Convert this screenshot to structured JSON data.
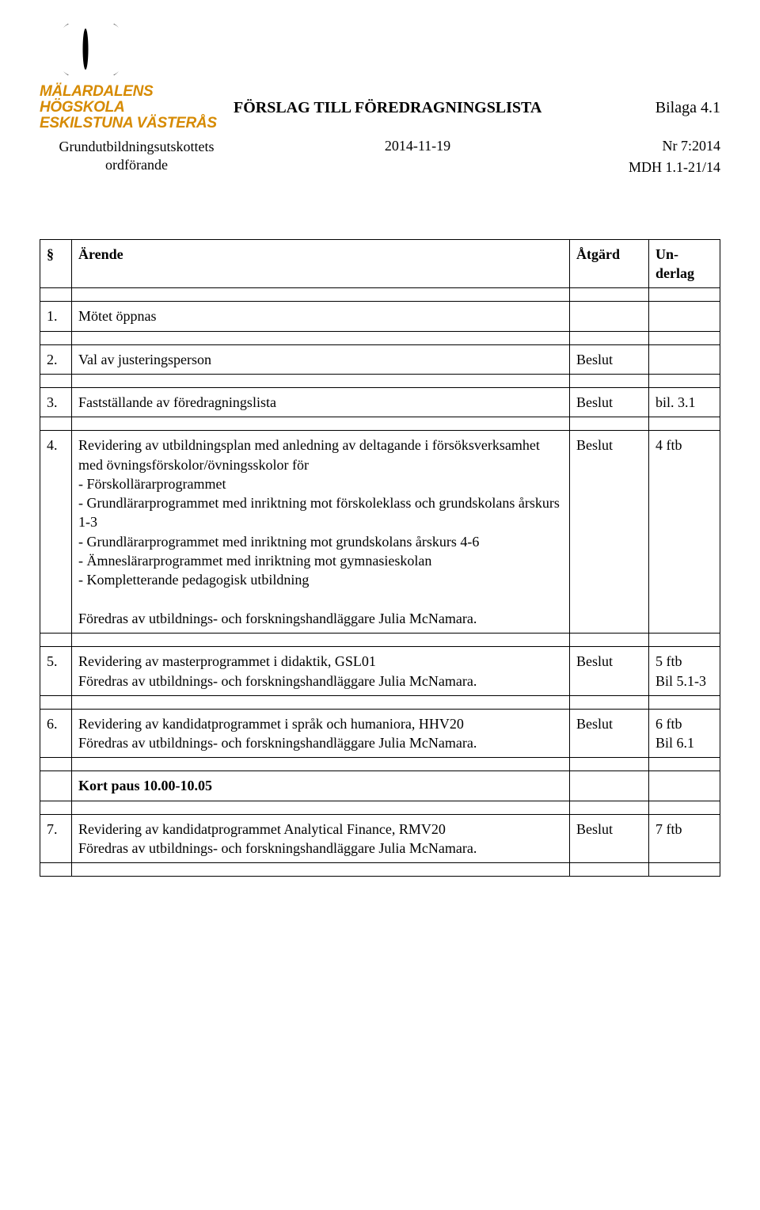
{
  "logo": {
    "line1_text": "MÄLARDALENS HÖGSKOLA",
    "line2_text": "ESKILSTUNA VÄSTERÅS",
    "text_color": "#d68a00",
    "symbol_color": "#000000"
  },
  "header": {
    "title": "FÖRSLAG TILL FÖREDRAGNINGSLISTA",
    "bilaga": "Bilaga 4.1",
    "subleft_line1": "Grundutbildningsutskottets",
    "subleft_line2": "ordförande",
    "date": "2014-11-19",
    "nr": "Nr 7:2014",
    "ref": "MDH 1.1-21/14"
  },
  "table": {
    "headers": {
      "num": "§",
      "arende": "Ärende",
      "atgard": "Åtgärd",
      "underlag": "Un-\nderlag"
    },
    "rows": [
      {
        "num": "1.",
        "desc": "Mötet öppnas",
        "action": "",
        "attach": ""
      },
      {
        "num": "2.",
        "desc": "Val av justeringsperson",
        "action": "Beslut",
        "attach": ""
      },
      {
        "num": "3.",
        "desc": "Fastställande av föredragningslista",
        "action": "Beslut",
        "attach": "bil. 3.1"
      },
      {
        "num": "4.",
        "desc": "Revidering av utbildningsplan med anledning av deltagande i försöksverksamhet med övningsförskolor/övningsskolor för\n- Förskollärarprogrammet\n- Grundlärarprogrammet med inriktning mot förskoleklass och grundskolans årskurs 1-3\n- Grundlärarprogrammet med inriktning mot grundskolans årskurs 4-6\n- Ämneslärarprogrammet med inriktning mot gymnasieskolan\n- Kompletterande pedagogisk utbildning\n\nFöredras av utbildnings- och forskningshandläggare Julia McNamara.",
        "action": "Beslut",
        "attach": "4 ftb"
      },
      {
        "num": "5.",
        "desc": "Revidering av masterprogrammet i didaktik, GSL01\nFöredras av utbildnings- och forskningshandläggare Julia McNamara.",
        "action": "Beslut",
        "attach": "5 ftb\nBil 5.1-3"
      },
      {
        "num": "6.",
        "desc": "Revidering av kandidatprogrammet i språk och humaniora, HHV20\nFöredras av utbildnings- och forskningshandläggare Julia McNamara.",
        "action": "Beslut",
        "attach": "6 ftb\nBil 6.1"
      },
      {
        "num": "",
        "desc": "Kort paus 10.00-10.05",
        "action": "",
        "attach": "",
        "bold": true
      },
      {
        "num": "7.",
        "desc": "Revidering av kandidatprogrammet Analytical Finance, RMV20\nFöredras av utbildnings- och forskningshandläggare Julia McNamara.",
        "action": "Beslut",
        "attach": "7 ftb"
      }
    ]
  }
}
